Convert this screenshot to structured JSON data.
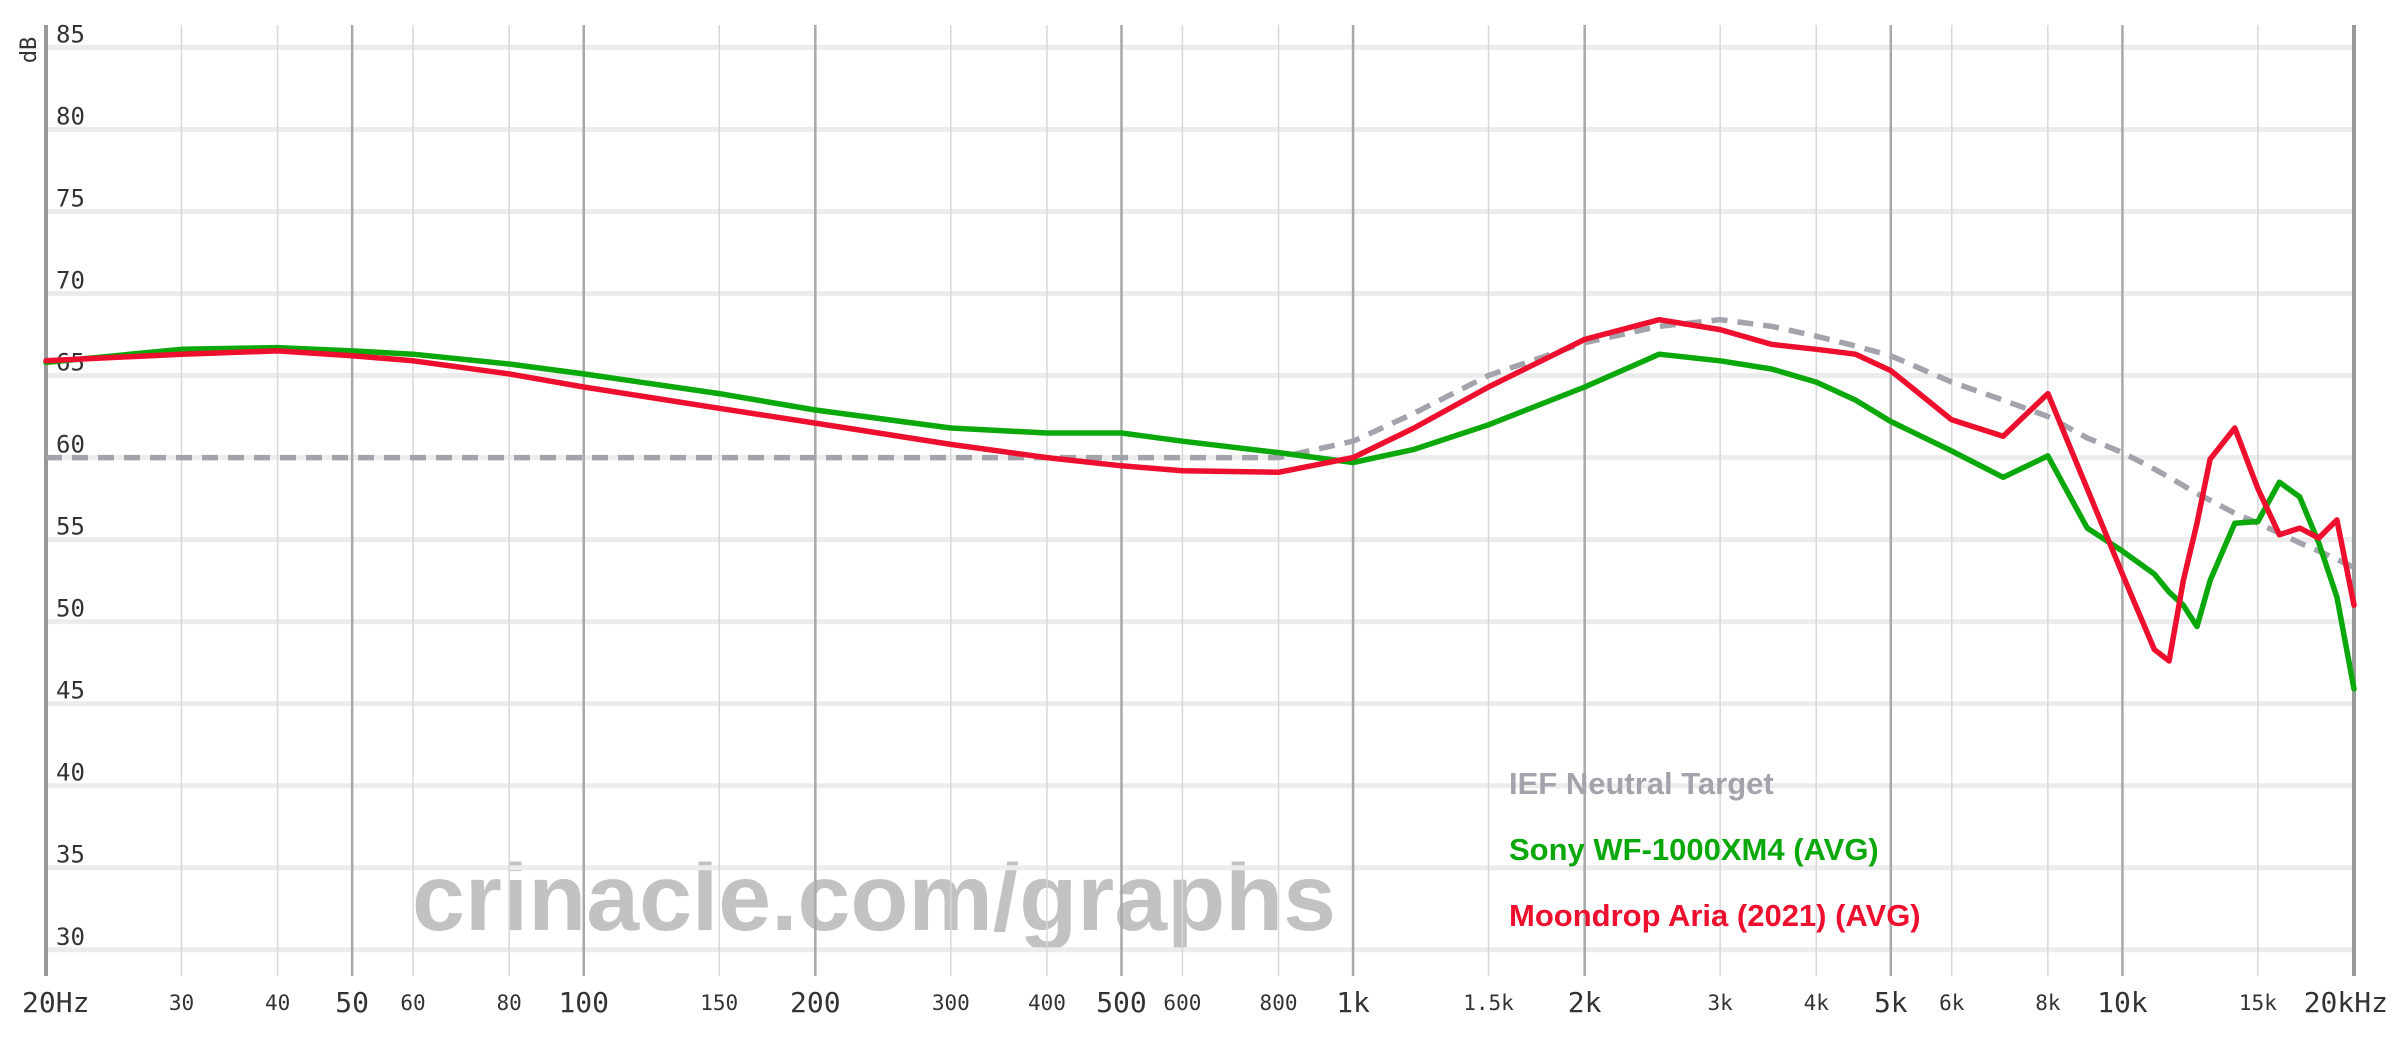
{
  "chart_data": {
    "type": "line",
    "y_label": "dB",
    "watermark": "crinacle.com/graphs",
    "xscale": "log",
    "xlim": [
      20,
      20000
    ],
    "ylim": [
      28.4,
      86
    ],
    "xticks": [
      {
        "value": 20,
        "label": "20Hz"
      },
      30,
      40,
      50,
      60,
      80,
      100,
      150,
      200,
      300,
      400,
      500,
      600,
      800,
      {
        "value": 1000,
        "label": "1k"
      },
      {
        "value": 1500,
        "label": "1.5k"
      },
      {
        "value": 2000,
        "label": "2k"
      },
      {
        "value": 3000,
        "label": "3k"
      },
      {
        "value": 4000,
        "label": "4k"
      },
      {
        "value": 5000,
        "label": "5k"
      },
      {
        "value": 6000,
        "label": "6k"
      },
      {
        "value": 8000,
        "label": "8k"
      },
      {
        "value": 10000,
        "label": "10k"
      },
      {
        "value": 15000,
        "label": "15k"
      },
      {
        "value": 20000,
        "label": "20kHz"
      }
    ],
    "yticks": [
      30,
      35,
      40,
      45,
      50,
      55,
      60,
      65,
      70,
      75,
      80,
      85
    ],
    "grid": true,
    "legend": "lower right",
    "x": [
      20,
      30,
      40,
      50,
      60,
      80,
      100,
      150,
      200,
      300,
      400,
      500,
      600,
      800,
      1000,
      1200,
      1500,
      2000,
      2500,
      3000,
      3500,
      4000,
      4500,
      5000,
      6000,
      7000,
      8000,
      9000,
      10000,
      11000,
      11500,
      12000,
      12500,
      13000,
      14000,
      15000,
      16000,
      17000,
      18000,
      19000,
      20000
    ],
    "series": [
      {
        "name": "IEF Neutral Target",
        "color": "#a3a3ab",
        "dashed": true,
        "values": [
          60,
          60,
          60,
          60,
          60,
          60,
          60,
          60,
          60,
          60,
          60,
          60,
          60,
          60,
          61,
          62.7,
          65,
          67,
          68,
          68.4,
          68,
          67.4,
          66.8,
          66.2,
          64.6,
          63.5,
          62.5,
          61.2,
          60.3,
          59.3,
          58.8,
          58.3,
          57.8,
          57.4,
          56.6,
          56,
          55.4,
          54.8,
          54.3,
          53.8,
          53.3
        ]
      },
      {
        "name": "Sony WF-1000XM4 (AVG)",
        "color": "#0aa80a",
        "dashed": false,
        "values": [
          65.8,
          66.6,
          66.7,
          66.5,
          66.3,
          65.7,
          65.1,
          63.9,
          62.9,
          61.8,
          61.5,
          61.5,
          61,
          60.3,
          59.7,
          60.5,
          62,
          64.3,
          66.3,
          65.9,
          65.4,
          64.6,
          63.5,
          62.2,
          60.4,
          58.8,
          60.1,
          55.7,
          54.3,
          52.9,
          51.8,
          51,
          49.7,
          52.5,
          56,
          56.1,
          58.5,
          57.6,
          54.8,
          51.5,
          45.9
        ]
      },
      {
        "name": "Moondrop Aria (2021) (AVG)",
        "color": "#ee0f2e",
        "dashed": false,
        "values": [
          65.9,
          66.3,
          66.5,
          66.2,
          65.9,
          65.1,
          64.3,
          63,
          62.1,
          60.8,
          60,
          59.5,
          59.2,
          59.1,
          60,
          61.8,
          64.3,
          67.2,
          68.4,
          67.8,
          66.9,
          66.6,
          66.3,
          65.3,
          62.3,
          61.3,
          63.9,
          58.1,
          52.9,
          48.3,
          47.6,
          52.5,
          56,
          59.9,
          61.8,
          58.1,
          55.3,
          55.7,
          55.1,
          56.2,
          51
        ]
      }
    ]
  }
}
